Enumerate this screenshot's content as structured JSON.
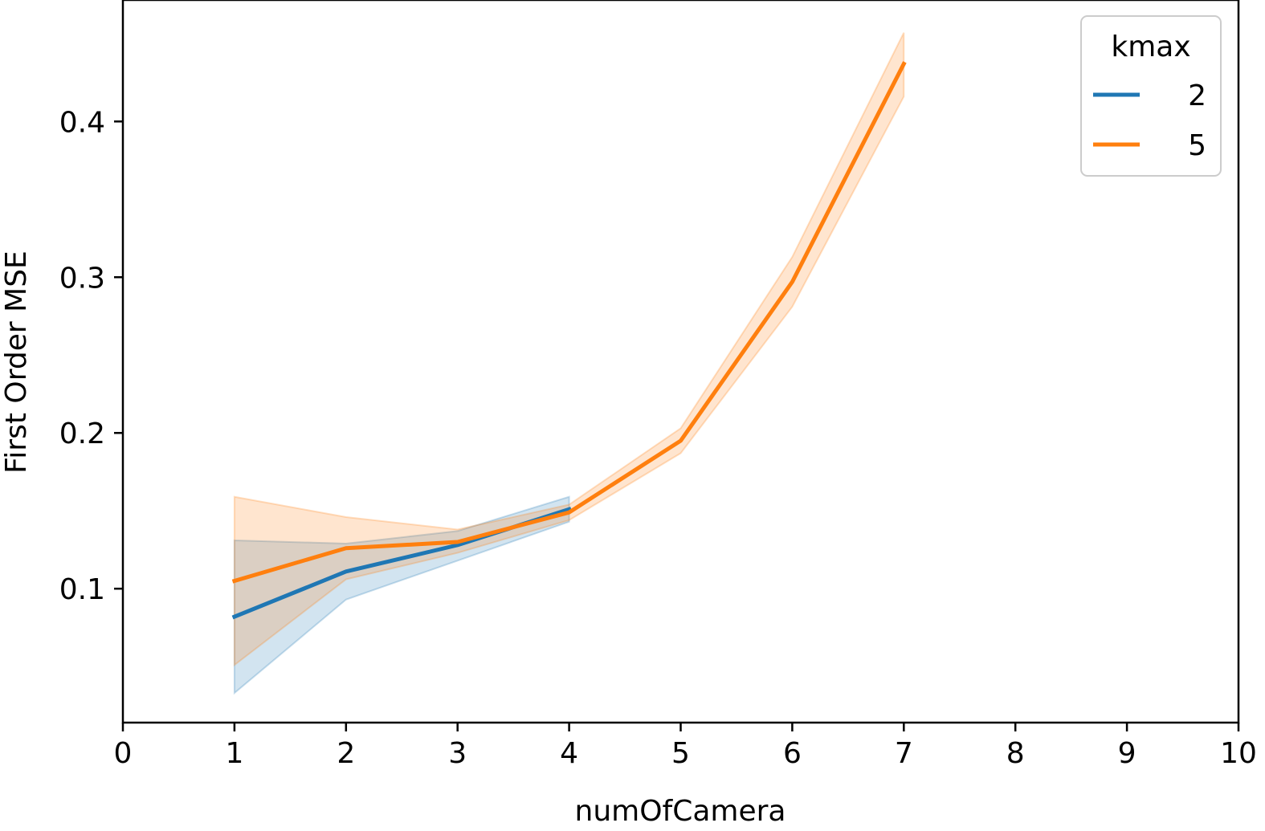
{
  "chart_data": {
    "type": "line",
    "title": "",
    "xlabel": "numOfCamera",
    "ylabel": "First Order MSE",
    "xlim": [
      0,
      10
    ],
    "ylim": [
      0.014,
      0.478
    ],
    "xticks": [
      "0",
      "1",
      "2",
      "3",
      "4",
      "5",
      "6",
      "7",
      "8",
      "9",
      "10"
    ],
    "yticks": [
      "0.1",
      "0.2",
      "0.3",
      "0.4"
    ],
    "grid": false,
    "legend": {
      "title": "kmax",
      "placement": "top-right"
    },
    "series": [
      {
        "name": "2",
        "color": "#1f77b4",
        "x": [
          1,
          2,
          3,
          4
        ],
        "y": [
          0.082,
          0.111,
          0.128,
          0.151
        ],
        "ci_low": [
          0.033,
          0.093,
          0.118,
          0.143
        ],
        "ci_high": [
          0.131,
          0.129,
          0.137,
          0.159
        ]
      },
      {
        "name": "5",
        "color": "#ff7f0e",
        "x": [
          1,
          2,
          3,
          4,
          5,
          6,
          7
        ],
        "y": [
          0.105,
          0.126,
          0.13,
          0.149,
          0.195,
          0.297,
          0.437
        ],
        "ci_low": [
          0.051,
          0.106,
          0.123,
          0.144,
          0.187,
          0.281,
          0.416
        ],
        "ci_high": [
          0.159,
          0.146,
          0.138,
          0.154,
          0.203,
          0.313,
          0.457
        ]
      }
    ]
  }
}
